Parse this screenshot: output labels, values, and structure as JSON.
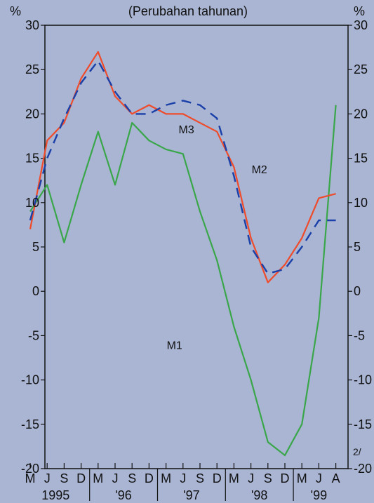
{
  "header": {
    "subtitle": "(Perubahan tahunan)",
    "unit_left": "%",
    "unit_right": "%",
    "footnote_mark": "2/"
  },
  "chart_data": {
    "type": "line",
    "subtitle": "(Perubahan tahunan)",
    "ylim": [
      -20,
      30
    ],
    "y_ticks": [
      "-20",
      "-15",
      "-10",
      "-5",
      "0",
      "5",
      "10",
      "15",
      "20",
      "25",
      "30"
    ],
    "x_month_labels": [
      "M",
      "J",
      "S",
      "D",
      "M",
      "J",
      "S",
      "D",
      "M",
      "J",
      "S",
      "D",
      "M",
      "J",
      "S",
      "D",
      "M",
      "J",
      "A"
    ],
    "x_year_labels": [
      "1995",
      "'96",
      "'97",
      "'98",
      "'99"
    ],
    "grid": false,
    "series": [
      {
        "name": "M1",
        "color": "#3aa64a",
        "dash": false,
        "values": [
          9,
          12,
          5.5,
          12,
          18,
          12,
          19,
          17,
          16,
          15.5,
          9,
          3.5,
          -4,
          -10,
          -17,
          -18.5,
          -15,
          -3,
          21
        ]
      },
      {
        "name": "M2",
        "color": "#ef4b2b",
        "dash": false,
        "values": [
          7,
          17,
          19,
          24,
          27,
          22,
          20,
          21,
          20,
          20,
          19,
          18,
          14,
          6,
          1,
          3,
          6,
          10.5,
          11
        ]
      },
      {
        "name": "M3",
        "color": "#1a3fa8",
        "dash": true,
        "values": [
          8,
          15,
          19.5,
          23.5,
          26,
          22.5,
          20,
          20,
          21,
          21.5,
          21,
          19.5,
          13,
          5,
          2,
          2.5,
          5,
          8,
          8
        ]
      }
    ]
  }
}
